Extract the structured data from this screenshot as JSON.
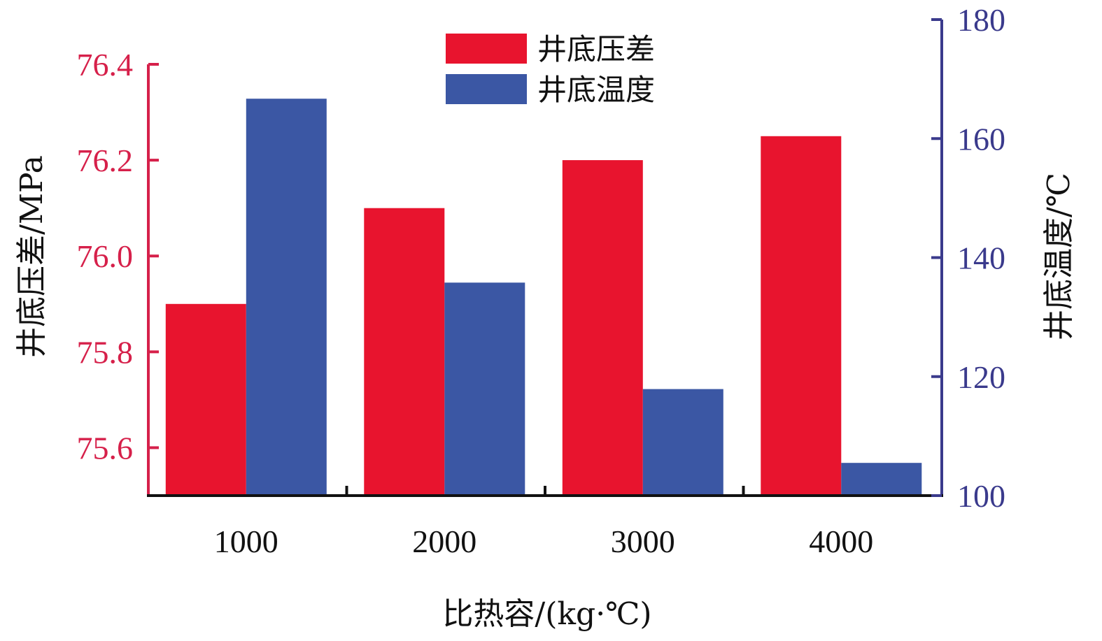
{
  "chart_data": {
    "type": "bar",
    "categories": [
      "1000",
      "2000",
      "3000",
      "4000"
    ],
    "series": [
      {
        "name": "井底压差",
        "axis": "left",
        "color": "#e8142e",
        "values": [
          75.9,
          76.1,
          76.2,
          76.25
        ]
      },
      {
        "name": "井底温度",
        "axis": "right",
        "color": "#3b57a4",
        "values": [
          166.7,
          135.8,
          117.9,
          105.5
        ]
      }
    ],
    "xlabel": "比热容/(kg·℃)",
    "ylabel_left": "井底压差/MPa",
    "ylabel_right": "井底温度/℃",
    "ylim_left": [
      75.5,
      76.4
    ],
    "ylim_right": [
      100,
      180
    ],
    "yticks_left": [
      "75.6",
      "75.8",
      "76.0",
      "76.2",
      "76.4"
    ],
    "yticks_right": [
      "100",
      "120",
      "140",
      "160",
      "180"
    ],
    "left_axis_color": "#d6204a",
    "right_axis_color": "#3a3a8c",
    "legend_position": "top-center",
    "grid": false
  }
}
